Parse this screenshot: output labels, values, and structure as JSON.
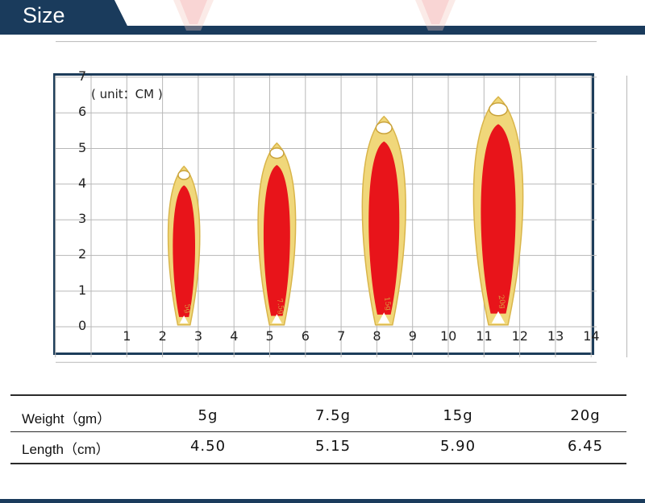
{
  "header": {
    "title": "Size",
    "bar_color": "#1a3b5c"
  },
  "chart": {
    "unit_label": "( unit：CM )",
    "y_ticks": [
      "0",
      "1",
      "2",
      "3",
      "4",
      "5",
      "6",
      "7"
    ],
    "x_ticks": [
      "1",
      "2",
      "3",
      "4",
      "5",
      "6",
      "7",
      "8",
      "9",
      "10",
      "11",
      "12",
      "13",
      "14"
    ],
    "frame_color": "#1d3d5a",
    "grid_color": "#b8b8b8",
    "lures": [
      {
        "name": "5g lure",
        "center_cm": 2.6,
        "length_cm": 4.5,
        "mark": "5g"
      },
      {
        "name": "7.5g lure",
        "center_cm": 5.2,
        "length_cm": 5.15,
        "mark": "7.5g"
      },
      {
        "name": "15g lure",
        "center_cm": 8.2,
        "length_cm": 5.9,
        "mark": "15g"
      },
      {
        "name": "20g lure",
        "center_cm": 11.4,
        "length_cm": 6.45,
        "mark": "20g"
      }
    ],
    "body_color": "#e8141a",
    "rim_color": "#f0d77a"
  },
  "table": {
    "weight_label": "Weight（gm）",
    "length_label": "Length（cm）",
    "weights": [
      "5g",
      "7.5g",
      "15g",
      "20g"
    ],
    "lengths": [
      "4.50",
      "5.15",
      "5.90",
      "6.45"
    ]
  }
}
